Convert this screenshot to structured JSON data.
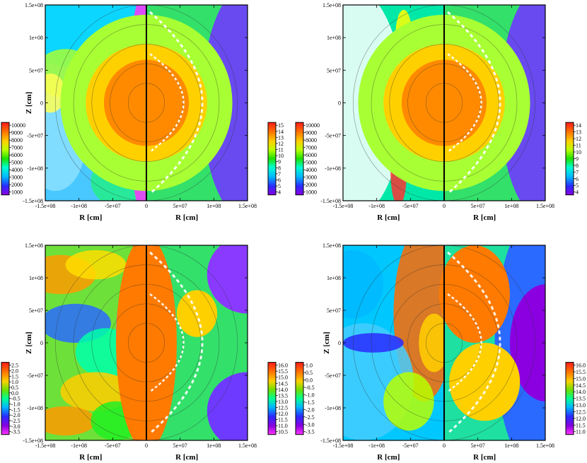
{
  "chart_data": [
    {
      "type": "heatmap",
      "panel": "top-left",
      "xlabel": "R [cm]",
      "ylabel": "Z [cm]",
      "x_ticks": [
        "-1.5e+08",
        "-1e+08",
        "-5e+07",
        "0",
        "5e+07",
        "1e+08",
        "1.5e+08"
      ],
      "y_ticks": [
        "1.5e+08",
        "1e+08",
        "5e+07",
        "0",
        "-5e+07",
        "-1e+08",
        "-1.5e+08"
      ],
      "xlim": [
        -150000000,
        150000000
      ],
      "ylim": [
        -150000000,
        150000000
      ],
      "left_colorbar": [
        "10000",
        "9000",
        "8000",
        "7000",
        "6000",
        "5000",
        "4000",
        "3000",
        "2000",
        "1000"
      ],
      "right_colorbar": [
        "15",
        "14",
        "13",
        "12",
        "11",
        "10",
        "9",
        "8",
        "7",
        "6",
        "5",
        "4"
      ],
      "left_range": [
        0,
        10000
      ],
      "right_range": [
        4,
        15
      ]
    },
    {
      "type": "heatmap",
      "panel": "top-right",
      "xlabel": "R [cm]",
      "ylabel": "",
      "x_ticks": [
        "-1.5e+08",
        "-1e+08",
        "-5e+07",
        "0",
        "5e+07",
        "1e+08",
        "1.5e+08"
      ],
      "y_ticks": [
        "1.5e+08",
        "1e+08",
        "5e+07",
        "0",
        "-5e+07",
        "-1e+08",
        "-1.5e+08"
      ],
      "xlim": [
        -150000000,
        150000000
      ],
      "ylim": [
        -150000000,
        150000000
      ],
      "left_colorbar": [
        "10000",
        "9000",
        "8000",
        "7000",
        "6000",
        "5000",
        "4000",
        "3000",
        "2000",
        "1000"
      ],
      "right_colorbar": [
        "14",
        "13",
        "12",
        "11",
        "10",
        "9",
        "8",
        "7",
        "6",
        "5",
        "4"
      ],
      "left_range": [
        0,
        10000
      ],
      "right_range": [
        4,
        14
      ]
    },
    {
      "type": "heatmap",
      "panel": "bottom-left",
      "xlabel": "R [cm]",
      "ylabel": "Z [cm]",
      "x_ticks": [
        "-1.5e+08",
        "-1e+08",
        "-5e+07",
        "0",
        "5e+07",
        "1e+08",
        "1.5e+08"
      ],
      "y_ticks": [
        "1.5e+08",
        "1e+08",
        "5e+07",
        "0",
        "-5e+07",
        "-1e+08",
        "-1.5e+08"
      ],
      "xlim": [
        -150000000,
        150000000
      ],
      "ylim": [
        -150000000,
        150000000
      ],
      "left_colorbar": [
        "2.5",
        "2.0",
        "1.5",
        "1.0",
        "0.5",
        "0.0",
        "-0.5",
        "-1.0",
        "-1.5",
        "-2.0",
        "-2.5",
        "-3.0",
        "-3.5"
      ],
      "right_colorbar": [
        "16.0",
        "15.5",
        "15.0",
        "14.5",
        "14.0",
        "13.5",
        "13.0",
        "12.5",
        "12.0",
        "11.5",
        "11.0",
        "10.5"
      ],
      "left_range": [
        -3.5,
        2.5
      ],
      "right_range": [
        10.5,
        16.0
      ]
    },
    {
      "type": "heatmap",
      "panel": "bottom-right",
      "xlabel": "R [cm]",
      "ylabel": "Z [cm]",
      "x_ticks": [
        "-1.5e+08",
        "-1e+08",
        "-5e+07",
        "0",
        "5e+07",
        "1e+08",
        "1.5e+08"
      ],
      "y_ticks": [
        "1.5e+08",
        "1e+08",
        "5e+07",
        "0",
        "-5e+07",
        "-1e+08",
        "-1.5e+08"
      ],
      "xlim": [
        -150000000,
        150000000
      ],
      "ylim": [
        -150000000,
        150000000
      ],
      "left_colorbar": [
        "1.0",
        "0.5",
        "0.0",
        "-0.5",
        "-1.0",
        "-1.5",
        "-2.0",
        "-2.5",
        "-3.0",
        "-3.5"
      ],
      "right_colorbar": [
        "16.0",
        "15.5",
        "15.0",
        "14.5",
        "14.0",
        "13.5",
        "13.0",
        "12.5",
        "12.0",
        "11.5",
        "11.0"
      ],
      "left_range": [
        -3.5,
        1.0
      ],
      "right_range": [
        11.0,
        16.0
      ]
    }
  ]
}
